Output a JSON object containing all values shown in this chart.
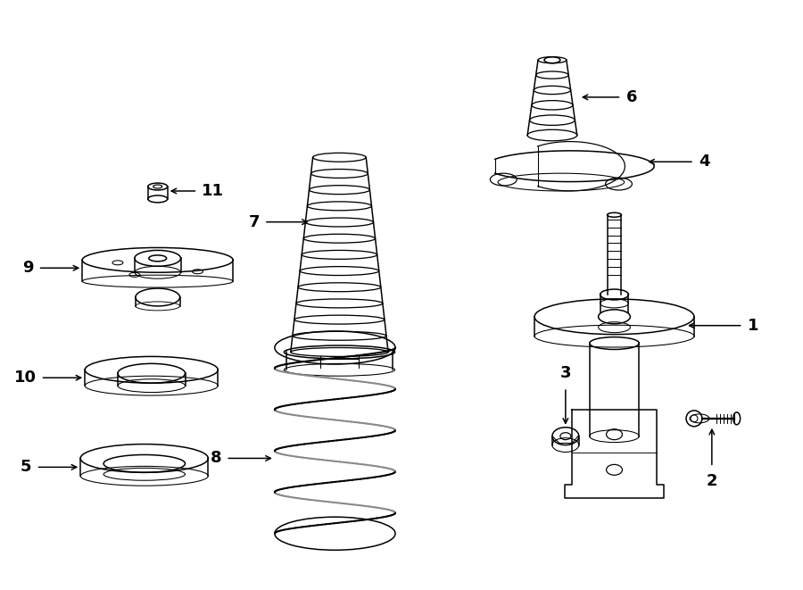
{
  "bg_color": "#ffffff",
  "line_color": "#000000",
  "fig_width": 9.0,
  "fig_height": 6.61,
  "dpi": 100,
  "lw": 1.1,
  "label_fontsize": 13
}
